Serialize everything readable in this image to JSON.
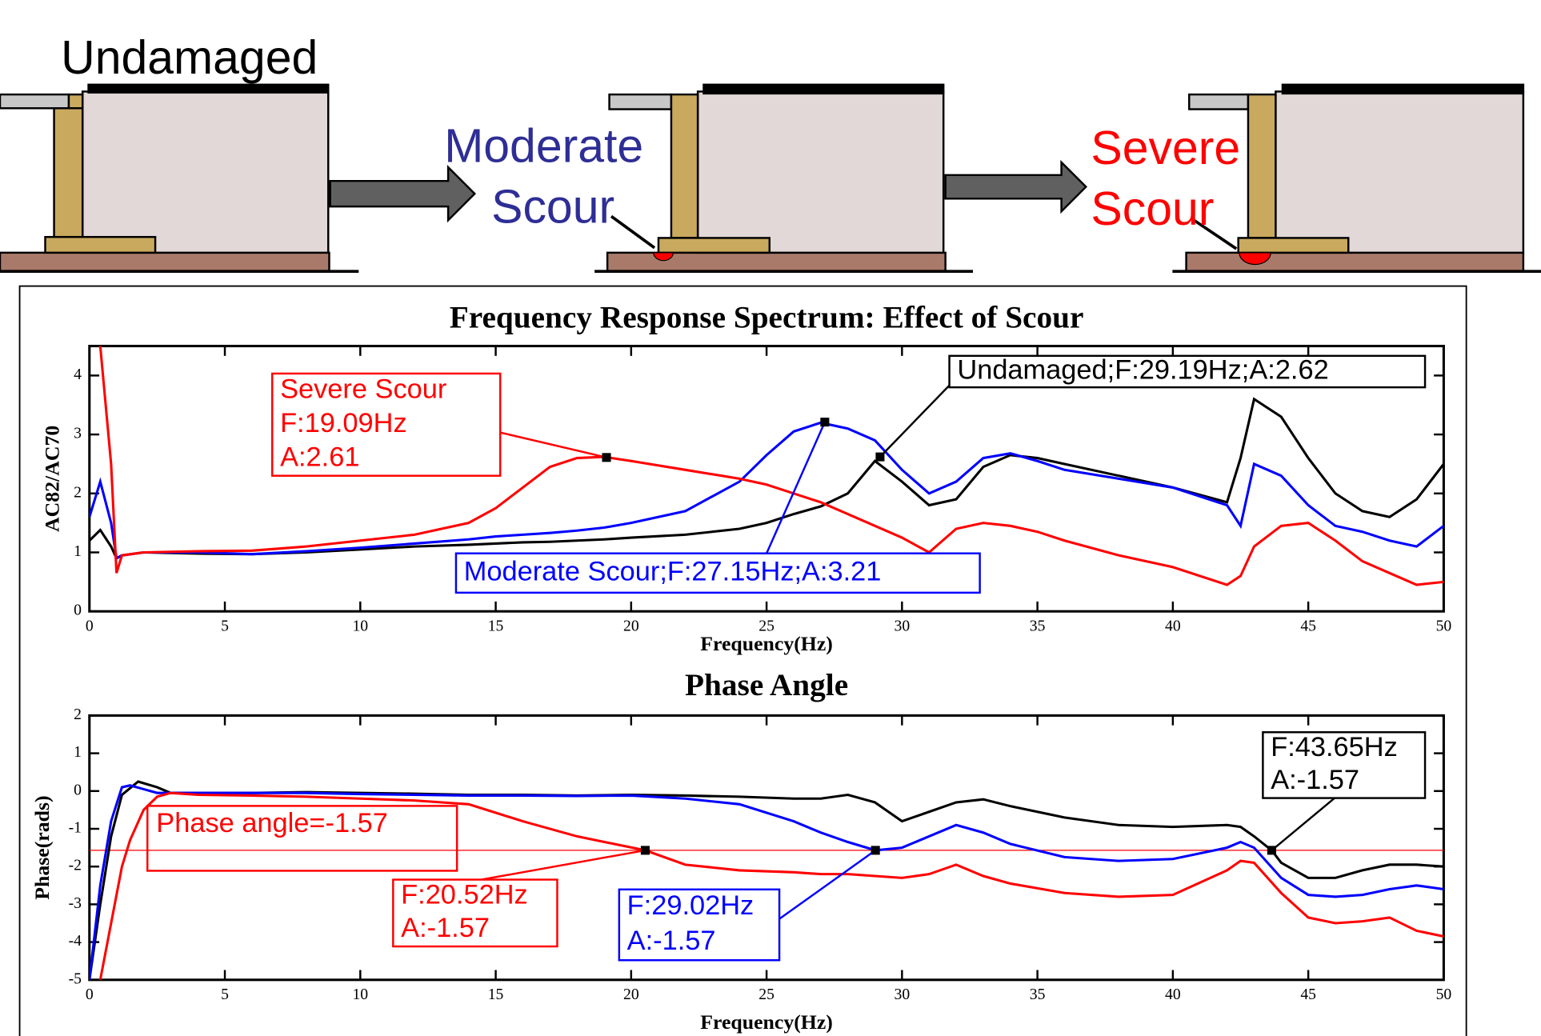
{
  "diagram": {
    "undamaged": "Undamaged",
    "moderate": [
      "Moderate",
      "Scour"
    ],
    "severe": [
      "Severe",
      "Scour"
    ]
  },
  "chart_data": [
    {
      "type": "line",
      "title": "Frequency Response Spectrum: Effect of Scour",
      "x_label": "Frequency(Hz)",
      "y_label": "AC82/AC70",
      "xlim": [
        0,
        50
      ],
      "xticks": [
        0,
        5,
        10,
        15,
        20,
        25,
        30,
        35,
        40,
        45,
        50
      ],
      "ylim": [
        0,
        4.5
      ],
      "yticks": [
        0,
        1,
        2,
        3,
        4
      ],
      "x": [
        0,
        0.4,
        0.8,
        1,
        1.2,
        2,
        4,
        6,
        8,
        10,
        12,
        14,
        15,
        16,
        17,
        18,
        19,
        20,
        22,
        24,
        25,
        26,
        27,
        28,
        29,
        30,
        31,
        32,
        33,
        34,
        35,
        36,
        38,
        40,
        42,
        42.5,
        43,
        44,
        45,
        46,
        47,
        48,
        49,
        50
      ],
      "series": [
        {
          "color": "#000000",
          "values": [
            1.2,
            1.38,
            1.1,
            0.9,
            0.95,
            1.0,
            0.98,
            0.97,
            1.0,
            1.05,
            1.1,
            1.13,
            1.15,
            1.17,
            1.18,
            1.2,
            1.22,
            1.25,
            1.3,
            1.4,
            1.5,
            1.65,
            1.78,
            2.0,
            2.55,
            2.2,
            1.8,
            1.9,
            2.45,
            2.65,
            2.6,
            2.5,
            2.3,
            2.1,
            1.85,
            2.6,
            3.6,
            3.3,
            2.6,
            2.0,
            1.7,
            1.6,
            1.9,
            2.5
          ]
        },
        {
          "color": "#0000ff",
          "values": [
            1.6,
            2.2,
            1.5,
            0.9,
            0.95,
            1.0,
            1.0,
            0.97,
            1.02,
            1.08,
            1.15,
            1.22,
            1.27,
            1.3,
            1.33,
            1.37,
            1.42,
            1.5,
            1.7,
            2.2,
            2.65,
            3.05,
            3.2,
            3.1,
            2.9,
            2.4,
            2.0,
            2.2,
            2.6,
            2.68,
            2.55,
            2.4,
            2.25,
            2.1,
            1.8,
            1.45,
            2.5,
            2.3,
            1.8,
            1.45,
            1.35,
            1.2,
            1.1,
            1.45
          ]
        },
        {
          "color": "#ff0000",
          "values": [
            null,
            4.5,
            2.5,
            0.65,
            0.95,
            1.0,
            1.02,
            1.03,
            1.1,
            1.2,
            1.3,
            1.5,
            1.75,
            2.1,
            2.45,
            2.6,
            2.62,
            2.55,
            2.4,
            2.25,
            2.15,
            2.0,
            1.85,
            1.65,
            1.45,
            1.25,
            1.0,
            1.4,
            1.5,
            1.45,
            1.35,
            1.2,
            0.95,
            0.75,
            0.45,
            0.6,
            1.1,
            1.45,
            1.5,
            1.2,
            0.85,
            0.65,
            0.45,
            0.5
          ]
        }
      ],
      "annotations": [
        {
          "lines": [
            "Severe Scour",
            "F:19.09Hz",
            "A:2.61"
          ],
          "x": 19.09,
          "y": 2.61,
          "color": "#ff0000"
        },
        {
          "lines": [
            "Moderate Scour;F:27.15Hz;A:3.21"
          ],
          "x": 27.15,
          "y": 3.21,
          "color": "#0000ff"
        },
        {
          "lines": [
            "Undamaged;F:29.19Hz;A:2.62"
          ],
          "x": 29.19,
          "y": 2.62,
          "color": "#000000"
        }
      ]
    },
    {
      "type": "line",
      "title": "Phase Angle",
      "x_label": "Frequency(Hz)",
      "y_label": "Phase(rads)",
      "xlim": [
        0,
        50
      ],
      "xticks": [
        0,
        5,
        10,
        15,
        20,
        25,
        30,
        35,
        40,
        45,
        50
      ],
      "ylim": [
        -5,
        2
      ],
      "yticks": [
        -5,
        -4,
        -3,
        -2,
        -1,
        0,
        1,
        2
      ],
      "series": [
        {
          "color": "#000000",
          "x": [
            0,
            0.4,
            0.8,
            1.2,
            1.8,
            2.5,
            3,
            4,
            6,
            8,
            10,
            12,
            14,
            16,
            18,
            20,
            22,
            24,
            26,
            27,
            28,
            29,
            30,
            31,
            32,
            33,
            34,
            36,
            38,
            40,
            42,
            42.5,
            43,
            43.65,
            44,
            45,
            46,
            47,
            48,
            49,
            50
          ],
          "values": [
            -5,
            -3,
            -1.2,
            -0.1,
            0.25,
            0.1,
            -0.05,
            -0.05,
            -0.05,
            -0.03,
            -0.05,
            -0.07,
            -0.1,
            -0.1,
            -0.12,
            -0.1,
            -0.12,
            -0.15,
            -0.2,
            -0.2,
            -0.1,
            -0.3,
            -0.8,
            -0.55,
            -0.3,
            -0.22,
            -0.4,
            -0.7,
            -0.9,
            -0.95,
            -0.9,
            -0.95,
            -1.2,
            -1.57,
            -1.9,
            -2.3,
            -2.3,
            -2.1,
            -1.95,
            -1.95,
            -2.0
          ]
        },
        {
          "color": "#0000ff",
          "x": [
            0,
            0.4,
            0.8,
            1.2,
            1.5,
            2,
            2.5,
            3,
            4,
            6,
            8,
            10,
            12,
            14,
            16,
            18,
            20,
            22,
            24,
            26,
            27,
            28,
            29.02,
            30,
            31,
            32,
            33,
            34,
            36,
            38,
            40,
            42,
            42.5,
            43,
            44,
            45,
            46,
            47,
            48,
            49,
            50
          ],
          "values": [
            -5,
            -2.5,
            -0.8,
            0.1,
            0.15,
            0.05,
            -0.05,
            -0.05,
            -0.05,
            -0.05,
            -0.05,
            -0.08,
            -0.1,
            -0.12,
            -0.12,
            -0.13,
            -0.12,
            -0.2,
            -0.35,
            -0.8,
            -1.1,
            -1.35,
            -1.57,
            -1.5,
            -1.2,
            -0.9,
            -1.1,
            -1.4,
            -1.75,
            -1.85,
            -1.8,
            -1.5,
            -1.35,
            -1.5,
            -2.3,
            -2.75,
            -2.8,
            -2.75,
            -2.6,
            -2.5,
            -2.6
          ]
        },
        {
          "color": "#ff0000",
          "x": [
            0.4,
            0.8,
            1.2,
            1.5,
            2,
            2.5,
            3,
            4,
            6,
            8,
            10,
            12,
            14,
            16,
            18,
            20.52,
            22,
            24,
            26,
            27,
            28,
            29,
            30,
            31,
            32,
            33,
            34,
            36,
            38,
            40,
            42,
            42.5,
            43,
            44,
            45,
            46,
            47,
            48,
            49,
            50
          ],
          "values": [
            -5,
            -3.5,
            -2,
            -1.3,
            -0.5,
            -0.15,
            -0.05,
            -0.1,
            -0.12,
            -0.15,
            -0.2,
            -0.25,
            -0.35,
            -0.8,
            -1.2,
            -1.57,
            -1.95,
            -2.1,
            -2.15,
            -2.2,
            -2.2,
            -2.25,
            -2.3,
            -2.2,
            -1.95,
            -2.25,
            -2.45,
            -2.7,
            -2.8,
            -2.75,
            -2.1,
            -1.85,
            -1.9,
            -2.7,
            -3.35,
            -3.5,
            -3.45,
            -3.35,
            -3.7,
            -3.85
          ]
        }
      ],
      "hline": {
        "value": -1.57,
        "label": "Phase angle=-1.57",
        "color": "#ff0000"
      },
      "annotations": [
        {
          "lines": [
            "F:43.65Hz",
            "A:-1.57"
          ],
          "x": 43.65,
          "y": -1.57,
          "color": "#000000"
        },
        {
          "lines": [
            "F:20.52Hz",
            "A:-1.57"
          ],
          "x": 20.52,
          "y": -1.57,
          "color": "#ff0000"
        },
        {
          "lines": [
            "F:29.02Hz",
            "A:-1.57"
          ],
          "x": 29.02,
          "y": -1.57,
          "color": "#0000ff"
        }
      ]
    }
  ]
}
